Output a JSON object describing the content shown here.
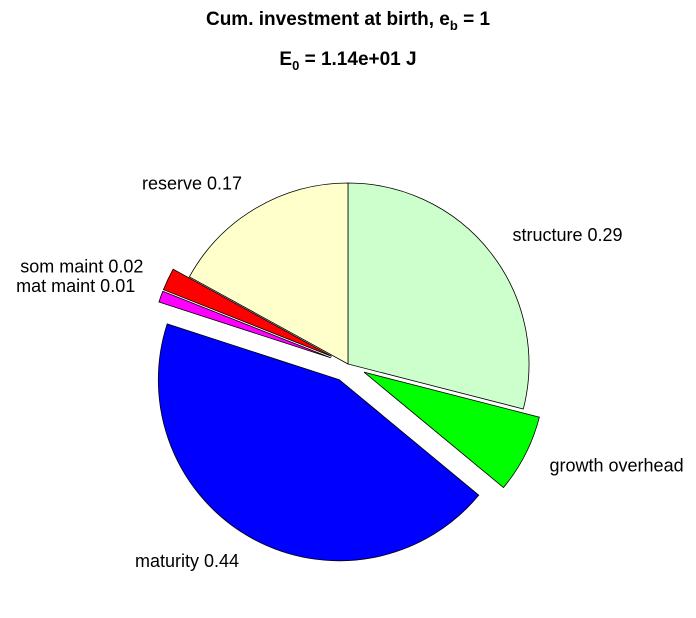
{
  "chart_data": {
    "type": "pie",
    "title": {
      "text": "Cum. investment at birth, e",
      "sub": "b",
      "tail": " = 1"
    },
    "subtitle": {
      "text": "E",
      "sub": "0",
      "tail": " = 1.14e+01 J"
    },
    "labels": [
      "structure 0.29",
      "growth overhead",
      "maturity 0.44",
      "mat maint 0.01",
      "som maint 0.02",
      "reserve 0.17"
    ],
    "values": [
      0.29,
      0.07,
      0.44,
      0.01,
      0.02,
      0.17
    ],
    "colors": [
      "#ccffcc",
      "#00ff00",
      "#0000ff",
      "#ff00ff",
      "#ff0000",
      "#ffffcc"
    ],
    "explode": [
      false,
      true,
      true,
      true,
      true,
      false
    ]
  }
}
